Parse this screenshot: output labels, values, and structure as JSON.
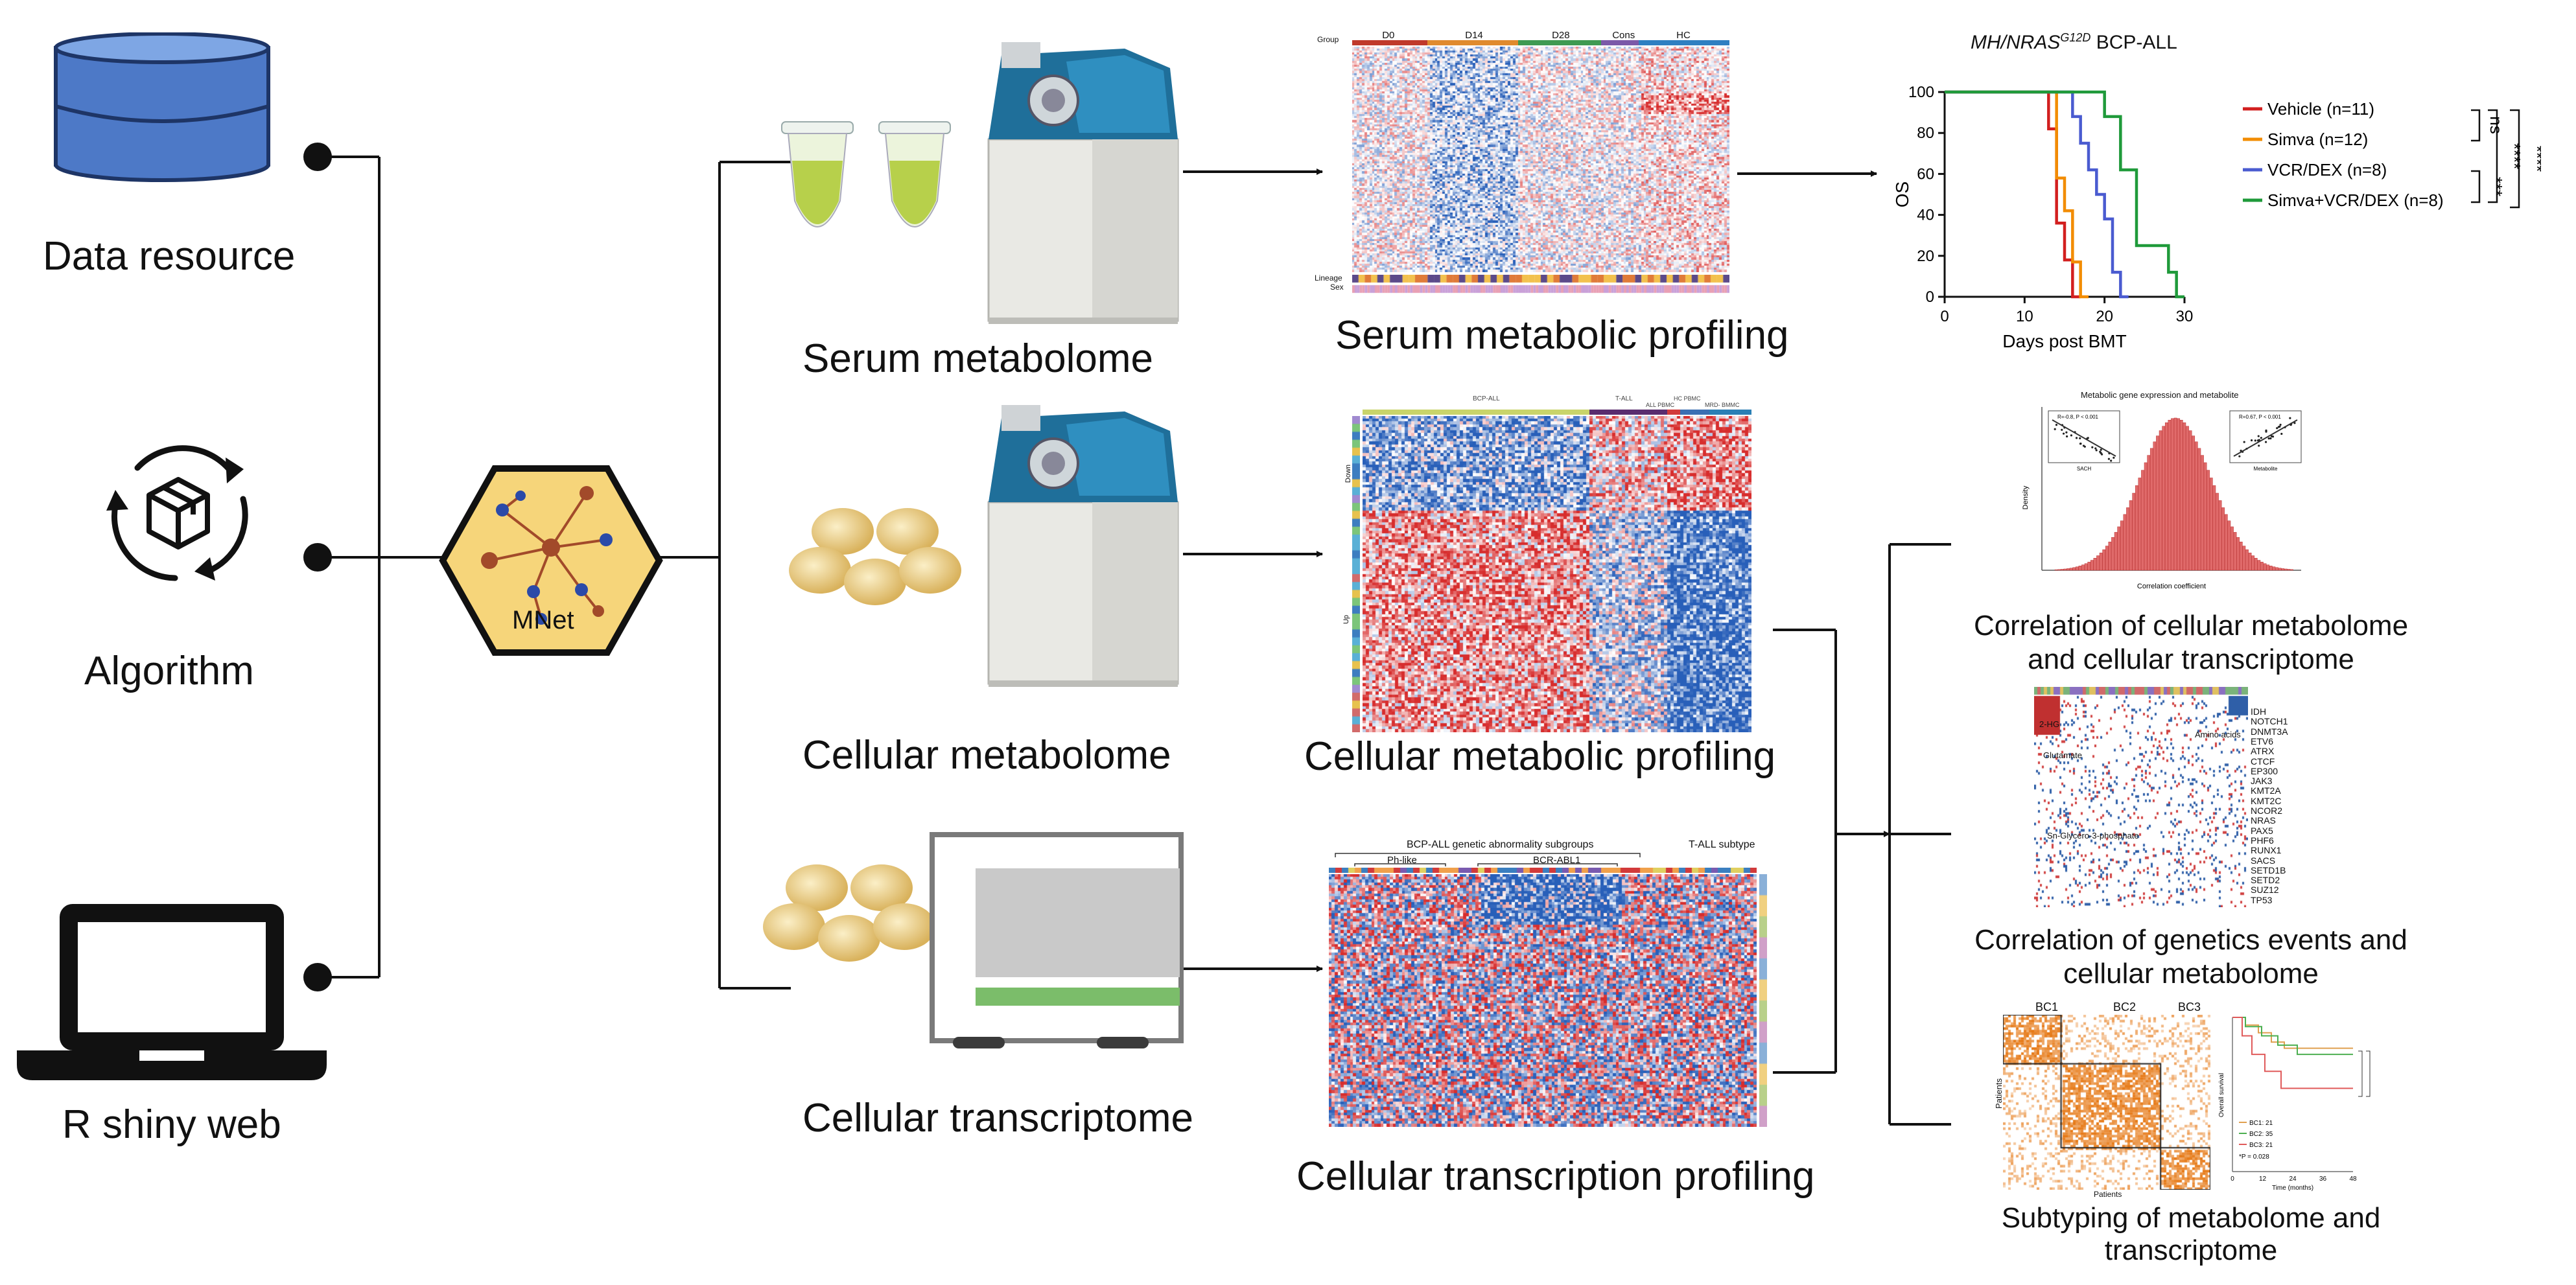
{
  "left_nodes": {
    "data_resource": "Data resource",
    "algorithm": "Algorithm",
    "r_shiny_web": "R shiny web"
  },
  "hub": {
    "label": "MNet"
  },
  "inputs": {
    "serum_metabolome": "Serum metabolome",
    "cellular_metabolome": "Cellular metabolome",
    "cellular_transcriptome": "Cellular transcriptome"
  },
  "profiles": {
    "serum_metabolic_profiling": "Serum metabolic profiling",
    "cellular_metabolic_profiling": "Cellular metabolic profiling",
    "cellular_transcription_profiling": "Cellular transcription profiling"
  },
  "serum_heatmap": {
    "group_label": "Group",
    "groups": [
      "D0",
      "D14",
      "D28",
      "Cons",
      "HC"
    ],
    "group_colors": [
      "#c0392b",
      "#e08a2e",
      "#3f9a52",
      "#7b59a8",
      "#2f7fc1"
    ],
    "lineage_label": "Lineage",
    "sex_label": "Sex"
  },
  "cell_heatmap": {
    "top_groups": [
      "BCP-ALL",
      "T-ALL",
      "ALL PBMC",
      "HC PBMC",
      "MRD- BMMC"
    ],
    "side_labels": [
      "Down",
      "Up"
    ]
  },
  "tx_heatmap": {
    "title_left": "BCP-ALL genetic abnormality subgroups",
    "title_right": "T-ALL subtype",
    "sub_left": "Ph-like",
    "sub_mid": "BCR-ABL1"
  },
  "survival": {
    "title_prefix": "MH/NRAS",
    "title_sup": "G12D",
    "title_suffix": " BCP-ALL",
    "ylabel": "OS",
    "xlabel": "Days post BMT",
    "legend": [
      "Vehicle (n=11)",
      "Simva (n=12)",
      "VCR/DEX (n=8)",
      "Simva+VCR/DEX (n=8)"
    ],
    "colors": [
      "#d21f1f",
      "#f28c00",
      "#4a5bd0",
      "#1f9a3a"
    ],
    "sig": [
      "ns",
      "****",
      "****",
      "***"
    ]
  },
  "chart_data": {
    "type": "line",
    "title": "MH/NRASG12D BCP-ALL",
    "xlabel": "Days post BMT",
    "ylabel": "OS",
    "xlim": [
      0,
      30
    ],
    "ylim": [
      0,
      100
    ],
    "xticks": [
      0,
      10,
      20,
      30
    ],
    "yticks": [
      0,
      20,
      40,
      60,
      80,
      100
    ],
    "series": [
      {
        "name": "Vehicle (n=11)",
        "points": [
          [
            0,
            100
          ],
          [
            13,
            100
          ],
          [
            13,
            82
          ],
          [
            14,
            82
          ],
          [
            14,
            36
          ],
          [
            15,
            36
          ],
          [
            15,
            18
          ],
          [
            16,
            18
          ],
          [
            16,
            0
          ],
          [
            17,
            0
          ]
        ]
      },
      {
        "name": "Simva (n=12)",
        "points": [
          [
            0,
            100
          ],
          [
            14,
            100
          ],
          [
            14,
            58
          ],
          [
            15,
            58
          ],
          [
            15,
            42
          ],
          [
            16,
            42
          ],
          [
            16,
            17
          ],
          [
            17,
            17
          ],
          [
            17,
            0
          ],
          [
            18,
            0
          ]
        ]
      },
      {
        "name": "VCR/DEX (n=8)",
        "points": [
          [
            0,
            100
          ],
          [
            16,
            100
          ],
          [
            16,
            88
          ],
          [
            17,
            88
          ],
          [
            17,
            75
          ],
          [
            18,
            75
          ],
          [
            18,
            62
          ],
          [
            19,
            62
          ],
          [
            19,
            50
          ],
          [
            20,
            50
          ],
          [
            20,
            38
          ],
          [
            21,
            38
          ],
          [
            21,
            12
          ],
          [
            22,
            12
          ],
          [
            22,
            0
          ],
          [
            23,
            0
          ]
        ]
      },
      {
        "name": "Simva+VCR/DEX (n=8)",
        "points": [
          [
            0,
            100
          ],
          [
            20,
            100
          ],
          [
            20,
            88
          ],
          [
            22,
            88
          ],
          [
            22,
            62
          ],
          [
            24,
            62
          ],
          [
            24,
            25
          ],
          [
            28,
            25
          ],
          [
            28,
            12
          ],
          [
            29,
            12
          ],
          [
            29,
            0
          ],
          [
            30,
            0
          ]
        ]
      }
    ]
  },
  "corr_panel": {
    "title": "Metabolic gene expression and metabolite",
    "xlabel": "Correlation coefficient",
    "ylabel": "Density",
    "left_inset": "R=-0.8, P < 0.001",
    "right_inset": "R=0.67, P < 0.001",
    "left_inset_x": "SACH",
    "right_inset_x": "Metabolite",
    "caption": "Correlation of cellular metabolome and cellular transcriptome"
  },
  "genetics_panel": {
    "genes": [
      "IDH",
      "NOTCH1",
      "DNMT3A",
      "ETV6",
      "ATRX",
      "CTCF",
      "EP300",
      "JAK3",
      "KMT2A",
      "KMT2C",
      "NCOR2",
      "NRAS",
      "PAX5",
      "PHF6",
      "RUNX1",
      "SACS",
      "SETD1B",
      "SETD2",
      "SUZ12",
      "TP53"
    ],
    "annotations": [
      "2-HG",
      "Amino acids",
      "Glutamate",
      "Sn-Glycero-3-phosphate"
    ],
    "caption": "Correlation of genetics events and cellular metabolome"
  },
  "subtype_panel": {
    "clusters": [
      "BC1",
      "BC2",
      "BC3"
    ],
    "ylabel": "Patients",
    "xlabel": "Patients",
    "km_ylabel": "Overall survival",
    "km_xlabel": "Time (months)",
    "km_xticks": [
      "0",
      "12",
      "24",
      "36",
      "48"
    ],
    "km_legend": [
      "BC1: 21",
      "BC2: 35",
      "BC3: 21"
    ],
    "km_colors": [
      "#e0a050",
      "#4caf50",
      "#e05a5a"
    ],
    "pvalue": "*P = 0.028",
    "caption": "Subtyping of metabolome and transcriptome"
  }
}
